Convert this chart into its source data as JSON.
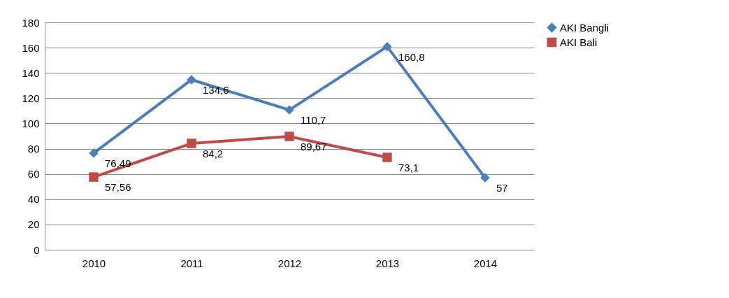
{
  "chart_data": {
    "type": "line",
    "categories": [
      "2010",
      "2011",
      "2012",
      "2013",
      "2014"
    ],
    "series": [
      {
        "name": "AKI Bangli",
        "color": "#4a7ebb",
        "marker": "diamond",
        "values": [
          76.49,
          134.6,
          110.7,
          160.8,
          57
        ],
        "value_labels": [
          "76,49",
          "134,6",
          "110,7",
          "160,8",
          "57"
        ]
      },
      {
        "name": "AKI Bali",
        "color": "#be4b48",
        "marker": "square",
        "values": [
          57.56,
          84.2,
          89.67,
          73.1,
          null
        ],
        "value_labels": [
          "57,56",
          "84,2",
          "89,67",
          "73,1",
          null
        ]
      }
    ],
    "ylim": [
      0,
      180
    ],
    "yticks": [
      0,
      20,
      40,
      60,
      80,
      100,
      120,
      140,
      160,
      180
    ],
    "grid": "y",
    "legend": "right",
    "line_style": "solid"
  }
}
